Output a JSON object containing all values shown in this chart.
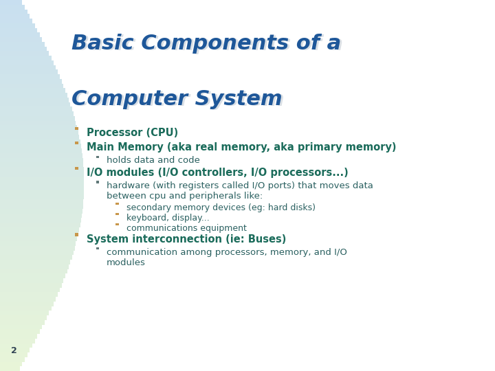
{
  "title_line1": "Basic Components of a",
  "title_line2": "Computer System",
  "title_color": "#1e5799",
  "bg_white": "#ffffff",
  "bg_light_blue": "#c8dff0",
  "bg_left_gradient_top": "#c8dff0",
  "bg_left_gradient_bottom": "#e8f0d8",
  "bullet_color_l0": "#c8964a",
  "bullet_color_l1": "#607878",
  "bullet_color_l2": "#c8964a",
  "bold_text_color": "#1a6b5a",
  "normal_text_color": "#2a6060",
  "page_number": "2",
  "content": [
    {
      "level": 0,
      "bold": true,
      "text": "Processor (CPU)"
    },
    {
      "level": 0,
      "bold": true,
      "text": "Main Memory (aka real memory, aka primary memory)"
    },
    {
      "level": 1,
      "bold": false,
      "text": "holds data and code"
    },
    {
      "level": 0,
      "bold": true,
      "text": "I/O modules (I/O controllers, I/O processors...)"
    },
    {
      "level": 1,
      "bold": false,
      "text": "hardware (with registers called I/O ports) that moves data\nbetween cpu and peripherals like:"
    },
    {
      "level": 2,
      "bold": false,
      "text": "secondary memory devices (eg: hard disks)"
    },
    {
      "level": 2,
      "bold": false,
      "text": "keyboard, display..."
    },
    {
      "level": 2,
      "bold": false,
      "text": "communications equipment"
    },
    {
      "level": 0,
      "bold": true,
      "text": "System interconnection (ie: Buses)"
    },
    {
      "level": 1,
      "bold": false,
      "text": "communication among processors, memory, and I/O\nmodules"
    }
  ]
}
